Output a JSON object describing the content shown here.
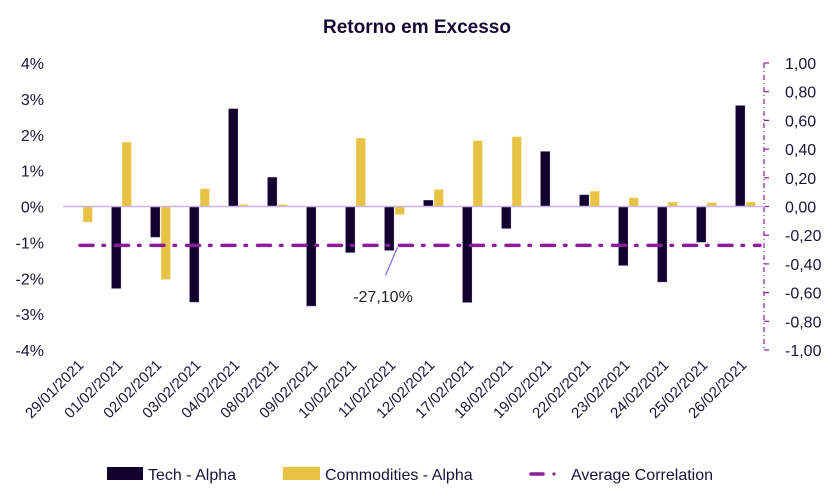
{
  "chart_data": {
    "type": "bar",
    "title": "Retorno em Excesso",
    "xlabel": "",
    "ylabel": "",
    "y2label": "",
    "categories": [
      "29/01/2021",
      "01/02/2021",
      "02/02/2021",
      "03/02/2021",
      "04/02/2021",
      "08/02/2021",
      "09/02/2021",
      "10/02/2021",
      "11/02/2021",
      "12/02/2021",
      "17/02/2021",
      "18/02/2021",
      "19/02/2021",
      "22/02/2021",
      "23/02/2021",
      "24/02/2021",
      "25/02/2021",
      "26/02/2021"
    ],
    "ylim": [
      -4,
      4
    ],
    "yticks": [
      4,
      3,
      2,
      1,
      0,
      -1,
      -2,
      -3,
      -4
    ],
    "ytick_labels": [
      "4%",
      "3%",
      "2%",
      "1%",
      "0%",
      "-1%",
      "-2%",
      "-3%",
      "-4%"
    ],
    "y2lim": [
      -1,
      1
    ],
    "y2ticks": [
      1,
      0.8,
      0.6,
      0.4,
      0.2,
      0,
      -0.2,
      -0.4,
      -0.6,
      -0.8,
      -1
    ],
    "y2tick_labels": [
      "1,00",
      "0,80",
      "0,60",
      "0,40",
      "0,20",
      "0,00",
      "-0,20",
      "-0,40",
      "-0,60",
      "-0,80",
      "-1,00"
    ],
    "grid": false,
    "legend_position": "bottom",
    "series": [
      {
        "name": "Tech - Alpha",
        "type": "bar",
        "axis": "left",
        "color": "#12002e",
        "values": [
          0,
          -2.28,
          -0.85,
          -2.66,
          2.72,
          0.81,
          -2.77,
          -1.28,
          -1.22,
          0.17,
          -2.67,
          -0.61,
          1.53,
          0.32,
          -1.64,
          -2.1,
          -0.99,
          2.81
        ]
      },
      {
        "name": "Commodities - Alpha",
        "type": "bar",
        "axis": "left",
        "color": "#e8c244",
        "values": [
          -0.43,
          1.79,
          -2.03,
          0.49,
          0.05,
          0.05,
          0,
          1.9,
          -0.22,
          0.47,
          1.83,
          1.94,
          0,
          0.42,
          0.24,
          0.12,
          0.1,
          0.12
        ]
      },
      {
        "name": "Average Correlation",
        "type": "line",
        "axis": "right",
        "color": "#8b1f9a",
        "style": "dash-dot",
        "value": -0.271
      }
    ],
    "annotations": [
      {
        "text": "-27,10%",
        "target_category": "11/02/2021",
        "series": "Average Correlation"
      }
    ]
  },
  "colors": {
    "tech": "#12002e",
    "commodities": "#e8c244",
    "avg_correlation": "#8b1f9a",
    "zero_line": "#c9b6ee",
    "annotation_leader": "#7b68ee"
  }
}
